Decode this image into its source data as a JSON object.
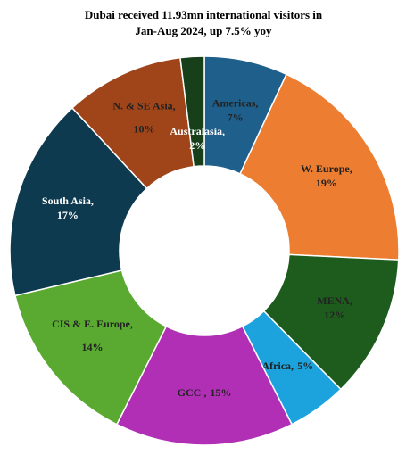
{
  "chart_data": {
    "type": "donut",
    "title": [
      "Dubai received 11.93mn international visitors in",
      "Jan-Aug 2024, up 7.5% yoy"
    ],
    "categories": [
      "Americas,",
      "W. Europe,",
      "MENA,",
      "Africa,",
      "GCC ,",
      "CIS & E. Europe,",
      "South Asia,",
      "N. & SE Asia,",
      "Australasia,"
    ],
    "values": [
      7,
      19,
      12,
      5,
      15,
      14,
      17,
      10,
      2
    ],
    "value_labels": [
      "7%",
      "19%",
      "12%",
      "5%",
      "15%",
      "14%",
      "17%",
      "10%",
      "2%"
    ],
    "colors": [
      "#1f5f8b",
      "#ed7d31",
      "#1e5c1e",
      "#1ca3dd",
      "#b02fb5",
      "#5aaa32",
      "#0d3a4e",
      "#a0451a",
      "#17401a"
    ]
  }
}
